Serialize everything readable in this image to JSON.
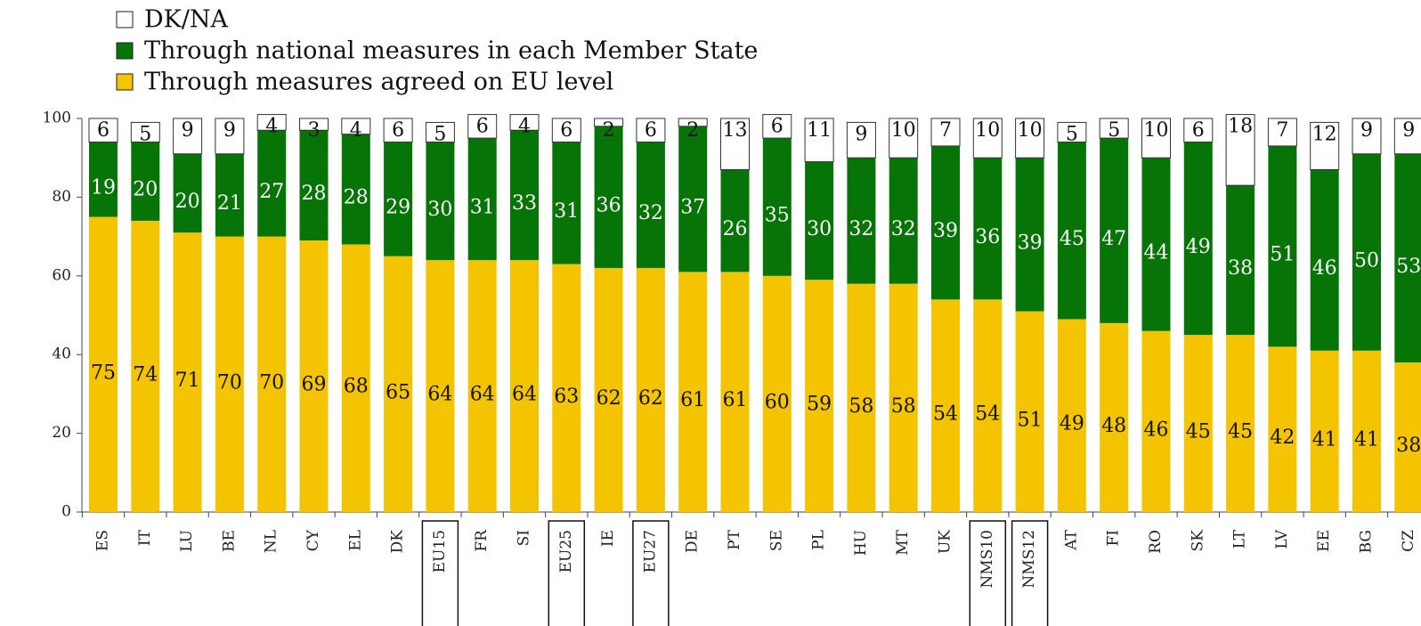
{
  "chart_data": {
    "type": "stacked_bar",
    "categories": [
      "ES",
      "IT",
      "LU",
      "BE",
      "NL",
      "CY",
      "EL",
      "DK",
      "EU15",
      "FR",
      "SI",
      "EU25",
      "IE",
      "EU27",
      "DE",
      "PT",
      "SE",
      "PL",
      "HU",
      "MT",
      "UK",
      "NMS10",
      "NMS12",
      "AT",
      "FI",
      "RO",
      "SK",
      "LT",
      "LV",
      "EE",
      "BG",
      "CZ"
    ],
    "series": [
      {
        "name": "Through measures agreed on EU level",
        "color": "#f5c400",
        "values": [
          75,
          74,
          71,
          70,
          70,
          69,
          68,
          65,
          64,
          64,
          64,
          63,
          62,
          62,
          61,
          61,
          60,
          59,
          58,
          58,
          54,
          54,
          51,
          49,
          48,
          46,
          45,
          45,
          42,
          41,
          41,
          38
        ]
      },
      {
        "name": "Through national measures in each Member State",
        "color": "#067406",
        "values": [
          19,
          20,
          20,
          21,
          27,
          28,
          28,
          29,
          30,
          31,
          33,
          31,
          36,
          32,
          37,
          26,
          35,
          30,
          32,
          32,
          39,
          36,
          39,
          45,
          47,
          44,
          49,
          38,
          51,
          46,
          50,
          53
        ]
      },
      {
        "name": "DK/NA",
        "color": "#ffffff",
        "values": [
          6,
          5,
          9,
          9,
          4,
          3,
          4,
          6,
          5,
          6,
          4,
          6,
          2,
          6,
          2,
          13,
          6,
          11,
          9,
          10,
          7,
          10,
          10,
          5,
          5,
          10,
          6,
          18,
          7,
          12,
          9,
          9
        ]
      }
    ],
    "ylim": [
      0,
      100
    ],
    "yticks": [
      0,
      20,
      40,
      60,
      80,
      100
    ]
  }
}
